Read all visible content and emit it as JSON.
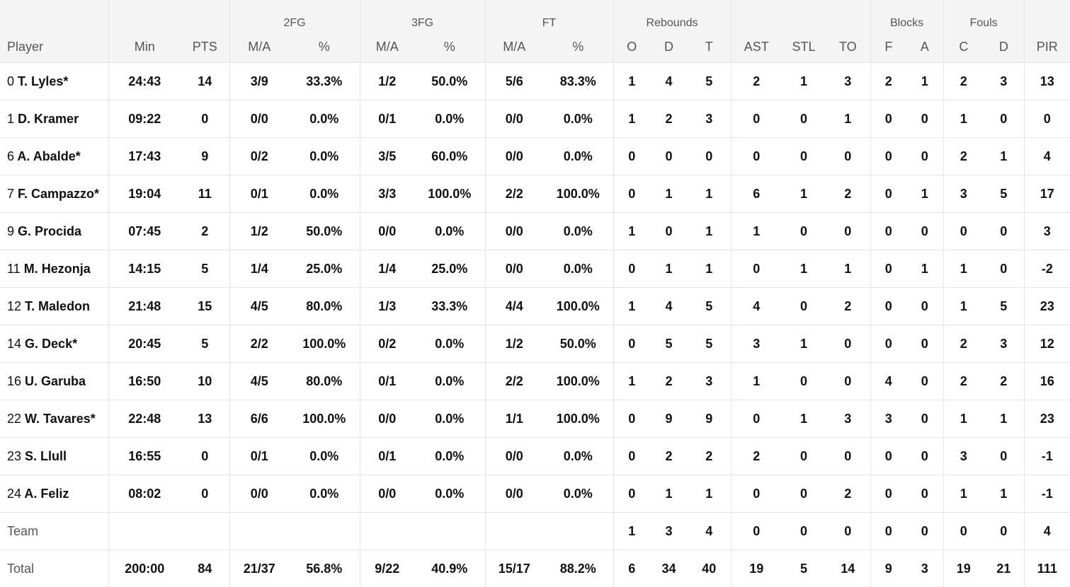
{
  "group_headers": {
    "fg2": "2FG",
    "fg3": "3FG",
    "ft": "FT",
    "rebounds": "Rebounds",
    "blocks": "Blocks",
    "fouls": "Fouls"
  },
  "column_headers": {
    "player": "Player",
    "min": "Min",
    "pts": "PTS",
    "fg2_ma": "M/A",
    "fg2_pct": "%",
    "fg3_ma": "M/A",
    "fg3_pct": "%",
    "ft_ma": "M/A",
    "ft_pct": "%",
    "reb_o": "O",
    "reb_d": "D",
    "reb_t": "T",
    "ast": "AST",
    "stl": "STL",
    "to": "TO",
    "blk_f": "F",
    "blk_a": "A",
    "fouls_c": "C",
    "fouls_d": "D",
    "pir": "PIR"
  },
  "players": [
    {
      "num": "0",
      "name": "T. Lyles*",
      "min": "24:43",
      "pts": "14",
      "fg2_ma": "3/9",
      "fg2_pct": "33.3%",
      "fg3_ma": "1/2",
      "fg3_pct": "50.0%",
      "ft_ma": "5/6",
      "ft_pct": "83.3%",
      "reb_o": "1",
      "reb_d": "4",
      "reb_t": "5",
      "ast": "2",
      "stl": "1",
      "to": "3",
      "blk_f": "2",
      "blk_a": "1",
      "fouls_c": "2",
      "fouls_d": "3",
      "pir": "13"
    },
    {
      "num": "1",
      "name": "D. Kramer",
      "min": "09:22",
      "pts": "0",
      "fg2_ma": "0/0",
      "fg2_pct": "0.0%",
      "fg3_ma": "0/1",
      "fg3_pct": "0.0%",
      "ft_ma": "0/0",
      "ft_pct": "0.0%",
      "reb_o": "1",
      "reb_d": "2",
      "reb_t": "3",
      "ast": "0",
      "stl": "0",
      "to": "1",
      "blk_f": "0",
      "blk_a": "0",
      "fouls_c": "1",
      "fouls_d": "0",
      "pir": "0"
    },
    {
      "num": "6",
      "name": "A. Abalde*",
      "min": "17:43",
      "pts": "9",
      "fg2_ma": "0/2",
      "fg2_pct": "0.0%",
      "fg3_ma": "3/5",
      "fg3_pct": "60.0%",
      "ft_ma": "0/0",
      "ft_pct": "0.0%",
      "reb_o": "0",
      "reb_d": "0",
      "reb_t": "0",
      "ast": "0",
      "stl": "0",
      "to": "0",
      "blk_f": "0",
      "blk_a": "0",
      "fouls_c": "2",
      "fouls_d": "1",
      "pir": "4"
    },
    {
      "num": "7",
      "name": "F. Campazzo*",
      "min": "19:04",
      "pts": "11",
      "fg2_ma": "0/1",
      "fg2_pct": "0.0%",
      "fg3_ma": "3/3",
      "fg3_pct": "100.0%",
      "ft_ma": "2/2",
      "ft_pct": "100.0%",
      "reb_o": "0",
      "reb_d": "1",
      "reb_t": "1",
      "ast": "6",
      "stl": "1",
      "to": "2",
      "blk_f": "0",
      "blk_a": "1",
      "fouls_c": "3",
      "fouls_d": "5",
      "pir": "17"
    },
    {
      "num": "9",
      "name": "G. Procida",
      "min": "07:45",
      "pts": "2",
      "fg2_ma": "1/2",
      "fg2_pct": "50.0%",
      "fg3_ma": "0/0",
      "fg3_pct": "0.0%",
      "ft_ma": "0/0",
      "ft_pct": "0.0%",
      "reb_o": "1",
      "reb_d": "0",
      "reb_t": "1",
      "ast": "1",
      "stl": "0",
      "to": "0",
      "blk_f": "0",
      "blk_a": "0",
      "fouls_c": "0",
      "fouls_d": "0",
      "pir": "3"
    },
    {
      "num": "11",
      "name": "M. Hezonja",
      "min": "14:15",
      "pts": "5",
      "fg2_ma": "1/4",
      "fg2_pct": "25.0%",
      "fg3_ma": "1/4",
      "fg3_pct": "25.0%",
      "ft_ma": "0/0",
      "ft_pct": "0.0%",
      "reb_o": "0",
      "reb_d": "1",
      "reb_t": "1",
      "ast": "0",
      "stl": "1",
      "to": "1",
      "blk_f": "0",
      "blk_a": "1",
      "fouls_c": "1",
      "fouls_d": "0",
      "pir": "-2"
    },
    {
      "num": "12",
      "name": "T. Maledon",
      "min": "21:48",
      "pts": "15",
      "fg2_ma": "4/5",
      "fg2_pct": "80.0%",
      "fg3_ma": "1/3",
      "fg3_pct": "33.3%",
      "ft_ma": "4/4",
      "ft_pct": "100.0%",
      "reb_o": "1",
      "reb_d": "4",
      "reb_t": "5",
      "ast": "4",
      "stl": "0",
      "to": "2",
      "blk_f": "0",
      "blk_a": "0",
      "fouls_c": "1",
      "fouls_d": "5",
      "pir": "23"
    },
    {
      "num": "14",
      "name": "G. Deck*",
      "min": "20:45",
      "pts": "5",
      "fg2_ma": "2/2",
      "fg2_pct": "100.0%",
      "fg3_ma": "0/2",
      "fg3_pct": "0.0%",
      "ft_ma": "1/2",
      "ft_pct": "50.0%",
      "reb_o": "0",
      "reb_d": "5",
      "reb_t": "5",
      "ast": "3",
      "stl": "1",
      "to": "0",
      "blk_f": "0",
      "blk_a": "0",
      "fouls_c": "2",
      "fouls_d": "3",
      "pir": "12"
    },
    {
      "num": "16",
      "name": "U. Garuba",
      "min": "16:50",
      "pts": "10",
      "fg2_ma": "4/5",
      "fg2_pct": "80.0%",
      "fg3_ma": "0/1",
      "fg3_pct": "0.0%",
      "ft_ma": "2/2",
      "ft_pct": "100.0%",
      "reb_o": "1",
      "reb_d": "2",
      "reb_t": "3",
      "ast": "1",
      "stl": "0",
      "to": "0",
      "blk_f": "4",
      "blk_a": "0",
      "fouls_c": "2",
      "fouls_d": "2",
      "pir": "16"
    },
    {
      "num": "22",
      "name": "W. Tavares*",
      "min": "22:48",
      "pts": "13",
      "fg2_ma": "6/6",
      "fg2_pct": "100.0%",
      "fg3_ma": "0/0",
      "fg3_pct": "0.0%",
      "ft_ma": "1/1",
      "ft_pct": "100.0%",
      "reb_o": "0",
      "reb_d": "9",
      "reb_t": "9",
      "ast": "0",
      "stl": "1",
      "to": "3",
      "blk_f": "3",
      "blk_a": "0",
      "fouls_c": "1",
      "fouls_d": "1",
      "pir": "23"
    },
    {
      "num": "23",
      "name": "S. Llull",
      "min": "16:55",
      "pts": "0",
      "fg2_ma": "0/1",
      "fg2_pct": "0.0%",
      "fg3_ma": "0/1",
      "fg3_pct": "0.0%",
      "ft_ma": "0/0",
      "ft_pct": "0.0%",
      "reb_o": "0",
      "reb_d": "2",
      "reb_t": "2",
      "ast": "2",
      "stl": "0",
      "to": "0",
      "blk_f": "0",
      "blk_a": "0",
      "fouls_c": "3",
      "fouls_d": "0",
      "pir": "-1"
    },
    {
      "num": "24",
      "name": "A. Feliz",
      "min": "08:02",
      "pts": "0",
      "fg2_ma": "0/0",
      "fg2_pct": "0.0%",
      "fg3_ma": "0/0",
      "fg3_pct": "0.0%",
      "ft_ma": "0/0",
      "ft_pct": "0.0%",
      "reb_o": "0",
      "reb_d": "1",
      "reb_t": "1",
      "ast": "0",
      "stl": "0",
      "to": "2",
      "blk_f": "0",
      "blk_a": "0",
      "fouls_c": "1",
      "fouls_d": "1",
      "pir": "-1"
    }
  ],
  "team": {
    "label": "Team",
    "reb_o": "1",
    "reb_d": "3",
    "reb_t": "4",
    "ast": "0",
    "stl": "0",
    "to": "0",
    "blk_f": "0",
    "blk_a": "0",
    "fouls_c": "0",
    "fouls_d": "0",
    "pir": "4"
  },
  "total": {
    "label": "Total",
    "min": "200:00",
    "pts": "84",
    "fg2_ma": "21/37",
    "fg2_pct": "56.8%",
    "fg3_ma": "9/22",
    "fg3_pct": "40.9%",
    "ft_ma": "15/17",
    "ft_pct": "88.2%",
    "reb_o": "6",
    "reb_d": "34",
    "reb_t": "40",
    "ast": "19",
    "stl": "5",
    "to": "14",
    "blk_f": "9",
    "blk_a": "3",
    "fouls_c": "19",
    "fouls_d": "21",
    "pir": "111"
  }
}
